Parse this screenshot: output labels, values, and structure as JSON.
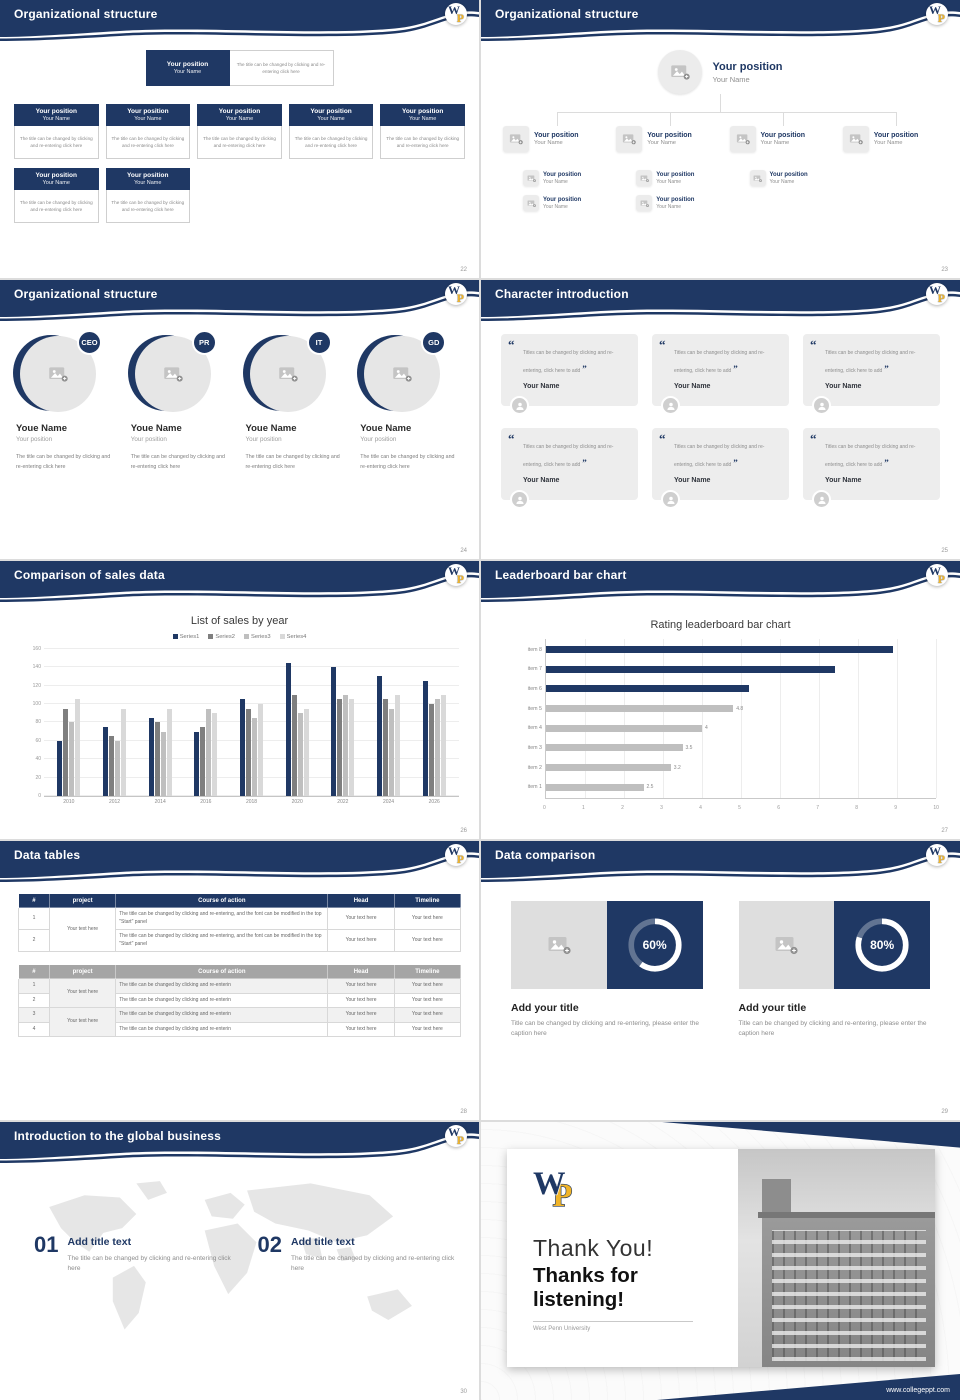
{
  "theme": {
    "navy": "#1f3864",
    "gold": "#f0b429",
    "gray_bar": "#bfbfbf",
    "table_gray_header": "#a5a5a5"
  },
  "common": {
    "your_position": "Your position",
    "your_name": "Your Name",
    "youe_name": "Youe Name",
    "caption_click": "The title can be changed by clicking and re-entering click here",
    "quote_text": "Titles can be changed by clicking and re-entering, click here to add",
    "caption_enter": "Title can be changed by clicking and re-entering, please enter the caption here",
    "add_your_title": "Add your title",
    "add_title_text": "Add title text",
    "your_text_here": "Your text here",
    "logo_w": "W",
    "logo_p": "P"
  },
  "slides": {
    "s22": {
      "title": "Organizational structure",
      "page": "22"
    },
    "s23": {
      "title": "Organizational structure",
      "page": "23"
    },
    "s24": {
      "title": "Organizational structure",
      "page": "24",
      "roles": [
        "CEO",
        "PR",
        "IT",
        "GD"
      ]
    },
    "s25": {
      "title": "Character introduction",
      "page": "25"
    },
    "s26": {
      "title": "Comparison of sales data",
      "page": "26"
    },
    "s27": {
      "title": "Leaderboard bar chart",
      "page": "27"
    },
    "s28": {
      "title": "Data tables",
      "page": "28",
      "headers": [
        "#",
        "project",
        "Course of action",
        "Head",
        "Timeline"
      ],
      "row_numbers_t1": [
        "1",
        "2"
      ],
      "row_numbers_t2": [
        "1",
        "2",
        "3",
        "4"
      ],
      "long_text": "The title can be changed by clicking and re-entering, and the font can be modified in the top \"Start\" panel",
      "short_text": "The title can be changed by clicking and re-enterin"
    },
    "s29": {
      "title": "Data comparison",
      "page": "29",
      "items": [
        {
          "percent": "60%"
        },
        {
          "percent": "80%"
        }
      ]
    },
    "s30": {
      "title": "Introduction to the global business",
      "page": "30",
      "items": [
        {
          "num": "01"
        },
        {
          "num": "02"
        }
      ]
    },
    "s31": {
      "line1": "Thank You!",
      "line2": "Thanks for listening!",
      "university": "West Penn University",
      "website": "www.collegeppt.com"
    }
  },
  "chart_data": [
    {
      "type": "bar",
      "title": "List of sales by year",
      "categories": [
        "2010",
        "2012",
        "2014",
        "2016",
        "2018",
        "2020",
        "2022",
        "2024",
        "2026"
      ],
      "series": [
        {
          "name": "Series1",
          "color": "#1f3864",
          "values": [
            60,
            75,
            85,
            70,
            105,
            145,
            140,
            130,
            125
          ]
        },
        {
          "name": "Series2",
          "color": "#7f7f7f",
          "values": [
            95,
            65,
            80,
            75,
            95,
            110,
            105,
            105,
            100
          ]
        },
        {
          "name": "Series3",
          "color": "#bfbfbf",
          "values": [
            80,
            60,
            70,
            95,
            85,
            90,
            110,
            95,
            105
          ]
        },
        {
          "name": "Series4",
          "color": "#d9d9d9",
          "values": [
            105,
            95,
            95,
            90,
            100,
            95,
            105,
            110,
            110
          ]
        }
      ],
      "xlabel": "",
      "ylabel": "",
      "ylim": [
        0,
        160
      ],
      "ytick_step": 20,
      "grid": true,
      "legend_position": "top"
    },
    {
      "type": "bar-horizontal",
      "title": "Rating leaderboard bar chart",
      "categories": [
        "item 1",
        "item 2",
        "item 3",
        "item 4",
        "item 5",
        "item 6",
        "item 7",
        "item 8"
      ],
      "values": [
        2.5,
        3.2,
        3.5,
        4,
        4.8,
        5.2,
        7.4,
        8.9
      ],
      "bar_colors": [
        "#bfbfbf",
        "#bfbfbf",
        "#bfbfbf",
        "#bfbfbf",
        "#bfbfbf",
        "#1f3864",
        "#1f3864",
        "#1f3864"
      ],
      "value_labels_shown": [
        true,
        true,
        true,
        true,
        true,
        false,
        false,
        false
      ],
      "xlim": [
        0,
        10
      ],
      "xtick_step": 1,
      "grid": true
    }
  ]
}
